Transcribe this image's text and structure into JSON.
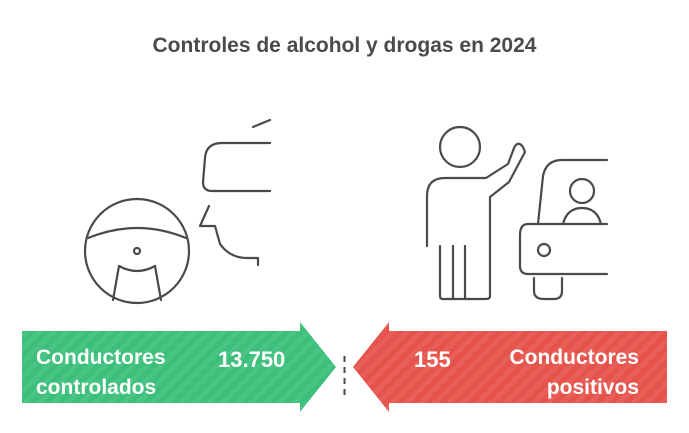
{
  "title": "Controles de alcohol y drogas en 2024",
  "left_panel": {
    "label_line1": "Conductores",
    "label_line2": "controlados",
    "value": "13.750",
    "color": "#3bbf7a",
    "icon": "steering-wheel-driver-icon"
  },
  "right_panel": {
    "label_line1": "Conductores",
    "label_line2": "positivos",
    "value": "155",
    "color": "#e5534b",
    "icon": "person-waving-car-icon"
  },
  "divider_color": "#4a4a4a"
}
